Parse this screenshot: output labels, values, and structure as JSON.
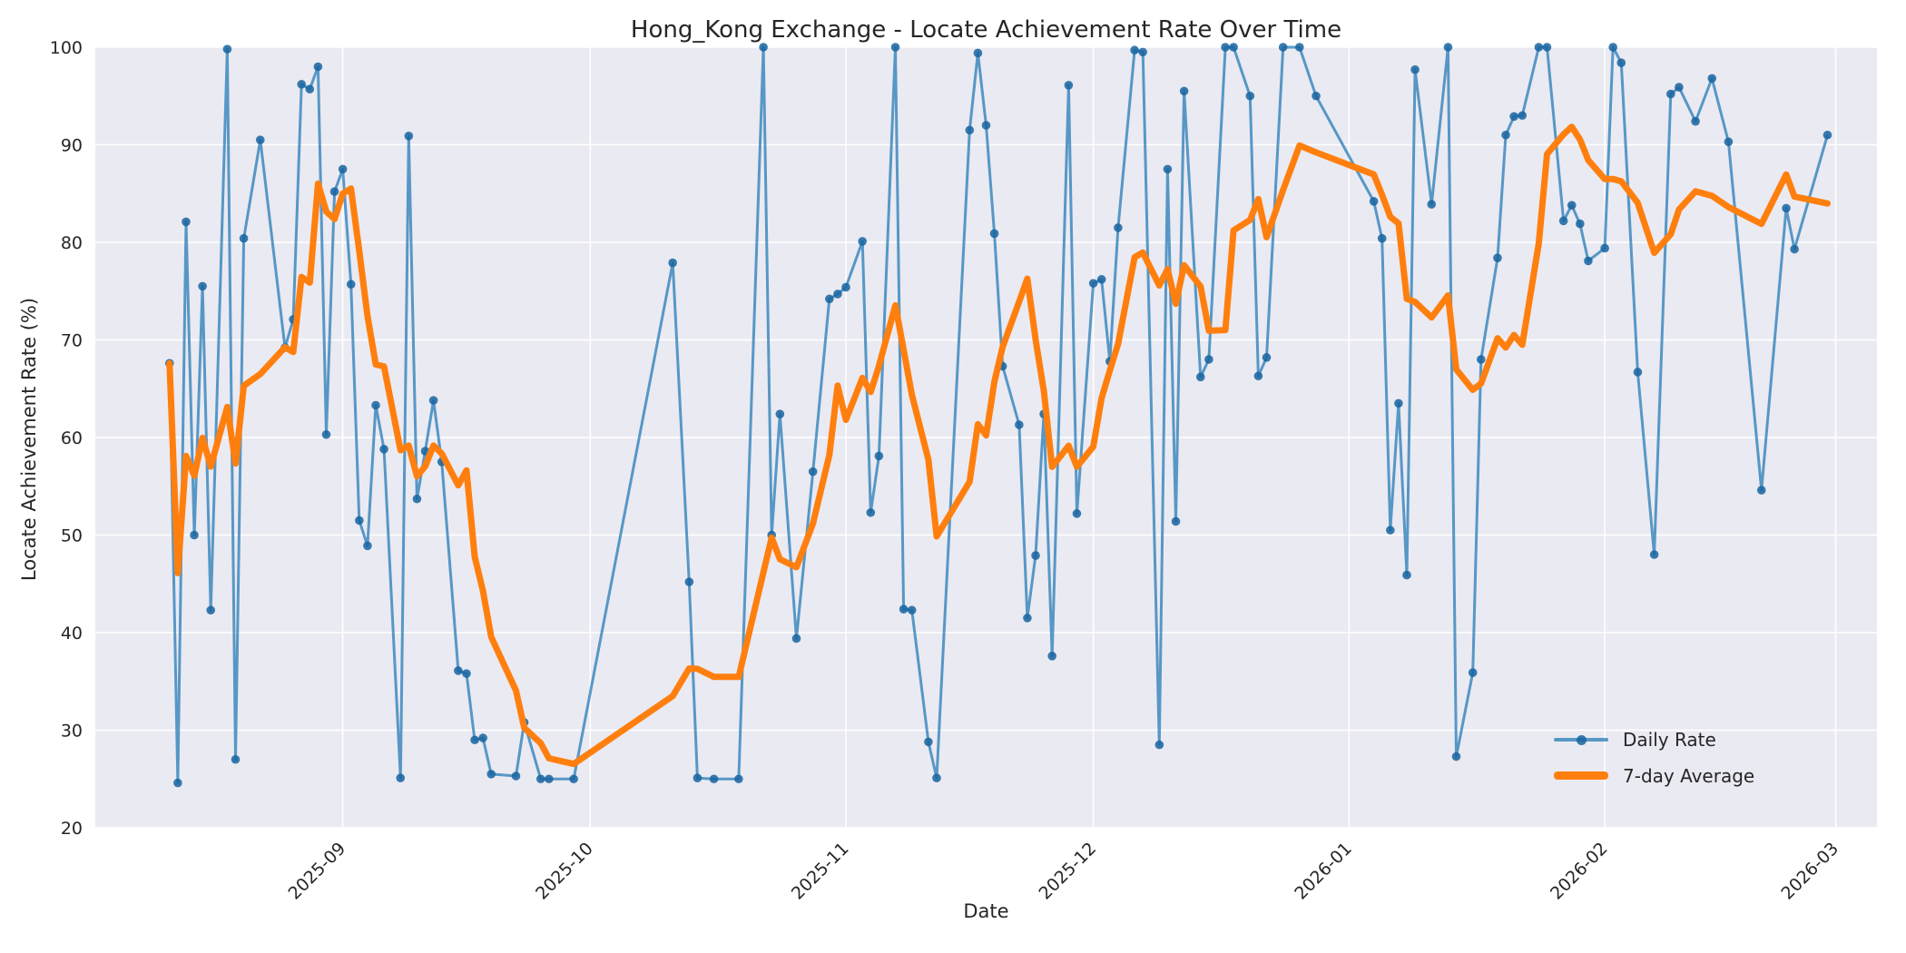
{
  "title": "Hong_Kong Exchange - Locate Achievement Rate Over Time",
  "axes": {
    "x_label": "Date",
    "y_label": "Locate Achievement Rate (%)"
  },
  "colors": {
    "figure_bg": "#ffffff",
    "plot_bg": "#eaeaf2",
    "grid": "#ffffff",
    "text": "#262626",
    "daily_line": "rgba(31,119,180,0.72)",
    "daily_marker": "rgba(23,100,160,0.85)",
    "avg_line": "#ff7f0e"
  },
  "chart_data": {
    "type": "line",
    "title": "Hong_Kong Exchange - Locate Achievement Rate Over Time",
    "xlabel": "Date",
    "ylabel": "Locate Achievement Rate (%)",
    "ylim": [
      20,
      100
    ],
    "y_ticks": [
      20,
      30,
      40,
      50,
      60,
      70,
      80,
      90,
      100
    ],
    "x_domain": [
      "2025-08-02",
      "2026-03-06"
    ],
    "x_ticks": [
      {
        "date": "2025-09-01",
        "label": "2025-09"
      },
      {
        "date": "2025-10-01",
        "label": "2025-10"
      },
      {
        "date": "2025-11-01",
        "label": "2025-11"
      },
      {
        "date": "2025-12-01",
        "label": "2025-12"
      },
      {
        "date": "2026-01-01",
        "label": "2026-01"
      },
      {
        "date": "2026-02-01",
        "label": "2026-02"
      },
      {
        "date": "2026-03-01",
        "label": "2026-03"
      }
    ],
    "grid": true,
    "legend_position": "lower right",
    "series": [
      {
        "name": "Daily Rate",
        "style": "line+markers",
        "points": [
          [
            "2025-08-11",
            67.6
          ],
          [
            "2025-08-12",
            24.6
          ],
          [
            "2025-08-13",
            82.1
          ],
          [
            "2025-08-14",
            50.0
          ],
          [
            "2025-08-15",
            75.5
          ],
          [
            "2025-08-16",
            42.3
          ],
          [
            "2025-08-18",
            99.8
          ],
          [
            "2025-08-19",
            27.0
          ],
          [
            "2025-08-20",
            80.4
          ],
          [
            "2025-08-22",
            90.5
          ],
          [
            "2025-08-25",
            69.2
          ],
          [
            "2025-08-26",
            72.1
          ],
          [
            "2025-08-27",
            96.2
          ],
          [
            "2025-08-28",
            95.7
          ],
          [
            "2025-08-29",
            98.0
          ],
          [
            "2025-08-30",
            60.3
          ],
          [
            "2025-08-31",
            85.2
          ],
          [
            "2025-09-01",
            87.5
          ],
          [
            "2025-09-02",
            75.7
          ],
          [
            "2025-09-03",
            51.5
          ],
          [
            "2025-09-04",
            48.9
          ],
          [
            "2025-09-05",
            63.3
          ],
          [
            "2025-09-06",
            58.8
          ],
          [
            "2025-09-08",
            25.1
          ],
          [
            "2025-09-09",
            90.9
          ],
          [
            "2025-09-10",
            53.7
          ],
          [
            "2025-09-11",
            58.6
          ],
          [
            "2025-09-12",
            63.8
          ],
          [
            "2025-09-13",
            57.5
          ],
          [
            "2025-09-15",
            36.1
          ],
          [
            "2025-09-16",
            35.8
          ],
          [
            "2025-09-17",
            29.0
          ],
          [
            "2025-09-18",
            29.2
          ],
          [
            "2025-09-19",
            25.5
          ],
          [
            "2025-09-22",
            25.3
          ],
          [
            "2025-09-23",
            30.8
          ],
          [
            "2025-09-25",
            25.0
          ],
          [
            "2025-09-26",
            25.0
          ],
          [
            "2025-09-29",
            25.0
          ],
          [
            "2025-10-11",
            77.9
          ],
          [
            "2025-10-13",
            45.2
          ],
          [
            "2025-10-14",
            25.1
          ],
          [
            "2025-10-16",
            25.0
          ],
          [
            "2025-10-19",
            25.0
          ],
          [
            "2025-10-22",
            100.0
          ],
          [
            "2025-10-23",
            50.0
          ],
          [
            "2025-10-24",
            62.4
          ],
          [
            "2025-10-26",
            39.4
          ],
          [
            "2025-10-28",
            56.5
          ],
          [
            "2025-10-30",
            74.2
          ],
          [
            "2025-10-31",
            74.7
          ],
          [
            "2025-11-01",
            75.4
          ],
          [
            "2025-11-03",
            80.1
          ],
          [
            "2025-11-04",
            52.3
          ],
          [
            "2025-11-05",
            58.1
          ],
          [
            "2025-11-07",
            100.0
          ],
          [
            "2025-11-08",
            42.4
          ],
          [
            "2025-11-09",
            42.3
          ],
          [
            "2025-11-11",
            28.8
          ],
          [
            "2025-11-12",
            25.1
          ],
          [
            "2025-11-16",
            91.5
          ],
          [
            "2025-11-17",
            99.4
          ],
          [
            "2025-11-18",
            92.0
          ],
          [
            "2025-11-19",
            80.9
          ],
          [
            "2025-11-20",
            67.3
          ],
          [
            "2025-11-22",
            61.3
          ],
          [
            "2025-11-23",
            41.5
          ],
          [
            "2025-11-24",
            47.9
          ],
          [
            "2025-11-25",
            62.4
          ],
          [
            "2025-11-26",
            37.6
          ],
          [
            "2025-11-28",
            96.1
          ],
          [
            "2025-11-29",
            52.2
          ],
          [
            "2025-12-01",
            75.8
          ],
          [
            "2025-12-02",
            76.2
          ],
          [
            "2025-12-03",
            67.8
          ],
          [
            "2025-12-04",
            81.5
          ],
          [
            "2025-12-06",
            99.7
          ],
          [
            "2025-12-07",
            99.5
          ],
          [
            "2025-12-09",
            28.5
          ],
          [
            "2025-12-10",
            87.5
          ],
          [
            "2025-12-11",
            51.4
          ],
          [
            "2025-12-12",
            95.5
          ],
          [
            "2025-12-14",
            66.2
          ],
          [
            "2025-12-15",
            68.0
          ],
          [
            "2025-12-17",
            100.0
          ],
          [
            "2025-12-18",
            100.0
          ],
          [
            "2025-12-20",
            95.0
          ],
          [
            "2025-12-21",
            66.3
          ],
          [
            "2025-12-22",
            68.2
          ],
          [
            "2025-12-24",
            100.0
          ],
          [
            "2025-12-26",
            100.0
          ],
          [
            "2025-12-28",
            95.0
          ],
          [
            "2026-01-04",
            84.2
          ],
          [
            "2026-01-05",
            80.4
          ],
          [
            "2026-01-06",
            50.5
          ],
          [
            "2026-01-07",
            63.5
          ],
          [
            "2026-01-08",
            45.9
          ],
          [
            "2026-01-09",
            97.7
          ],
          [
            "2026-01-11",
            83.9
          ],
          [
            "2026-01-13",
            100.0
          ],
          [
            "2026-01-14",
            27.3
          ],
          [
            "2026-01-16",
            35.9
          ],
          [
            "2026-01-17",
            68.0
          ],
          [
            "2026-01-19",
            78.4
          ],
          [
            "2026-01-20",
            91.0
          ],
          [
            "2026-01-21",
            92.9
          ],
          [
            "2026-01-22",
            93.0
          ],
          [
            "2026-01-24",
            100.0
          ],
          [
            "2026-01-25",
            100.0
          ],
          [
            "2026-01-27",
            82.2
          ],
          [
            "2026-01-28",
            83.8
          ],
          [
            "2026-01-29",
            81.9
          ],
          [
            "2026-01-30",
            78.1
          ],
          [
            "2026-02-01",
            79.4
          ],
          [
            "2026-02-02",
            100.0
          ],
          [
            "2026-02-03",
            98.4
          ],
          [
            "2026-02-05",
            66.7
          ],
          [
            "2026-02-07",
            48.0
          ],
          [
            "2026-02-09",
            95.2
          ],
          [
            "2026-02-10",
            95.9
          ],
          [
            "2026-02-12",
            92.4
          ],
          [
            "2026-02-14",
            96.8
          ],
          [
            "2026-02-16",
            90.3
          ],
          [
            "2026-02-20",
            54.6
          ],
          [
            "2026-02-23",
            83.5
          ],
          [
            "2026-02-24",
            79.3
          ],
          [
            "2026-02-28",
            91.0
          ]
        ]
      },
      {
        "name": "7-day Average",
        "style": "thick-line",
        "derived": "rolling_mean_of_previous_7_daily_points"
      }
    ]
  },
  "legend": {
    "items": [
      {
        "label": "Daily Rate"
      },
      {
        "label": "7-day Average"
      }
    ]
  }
}
